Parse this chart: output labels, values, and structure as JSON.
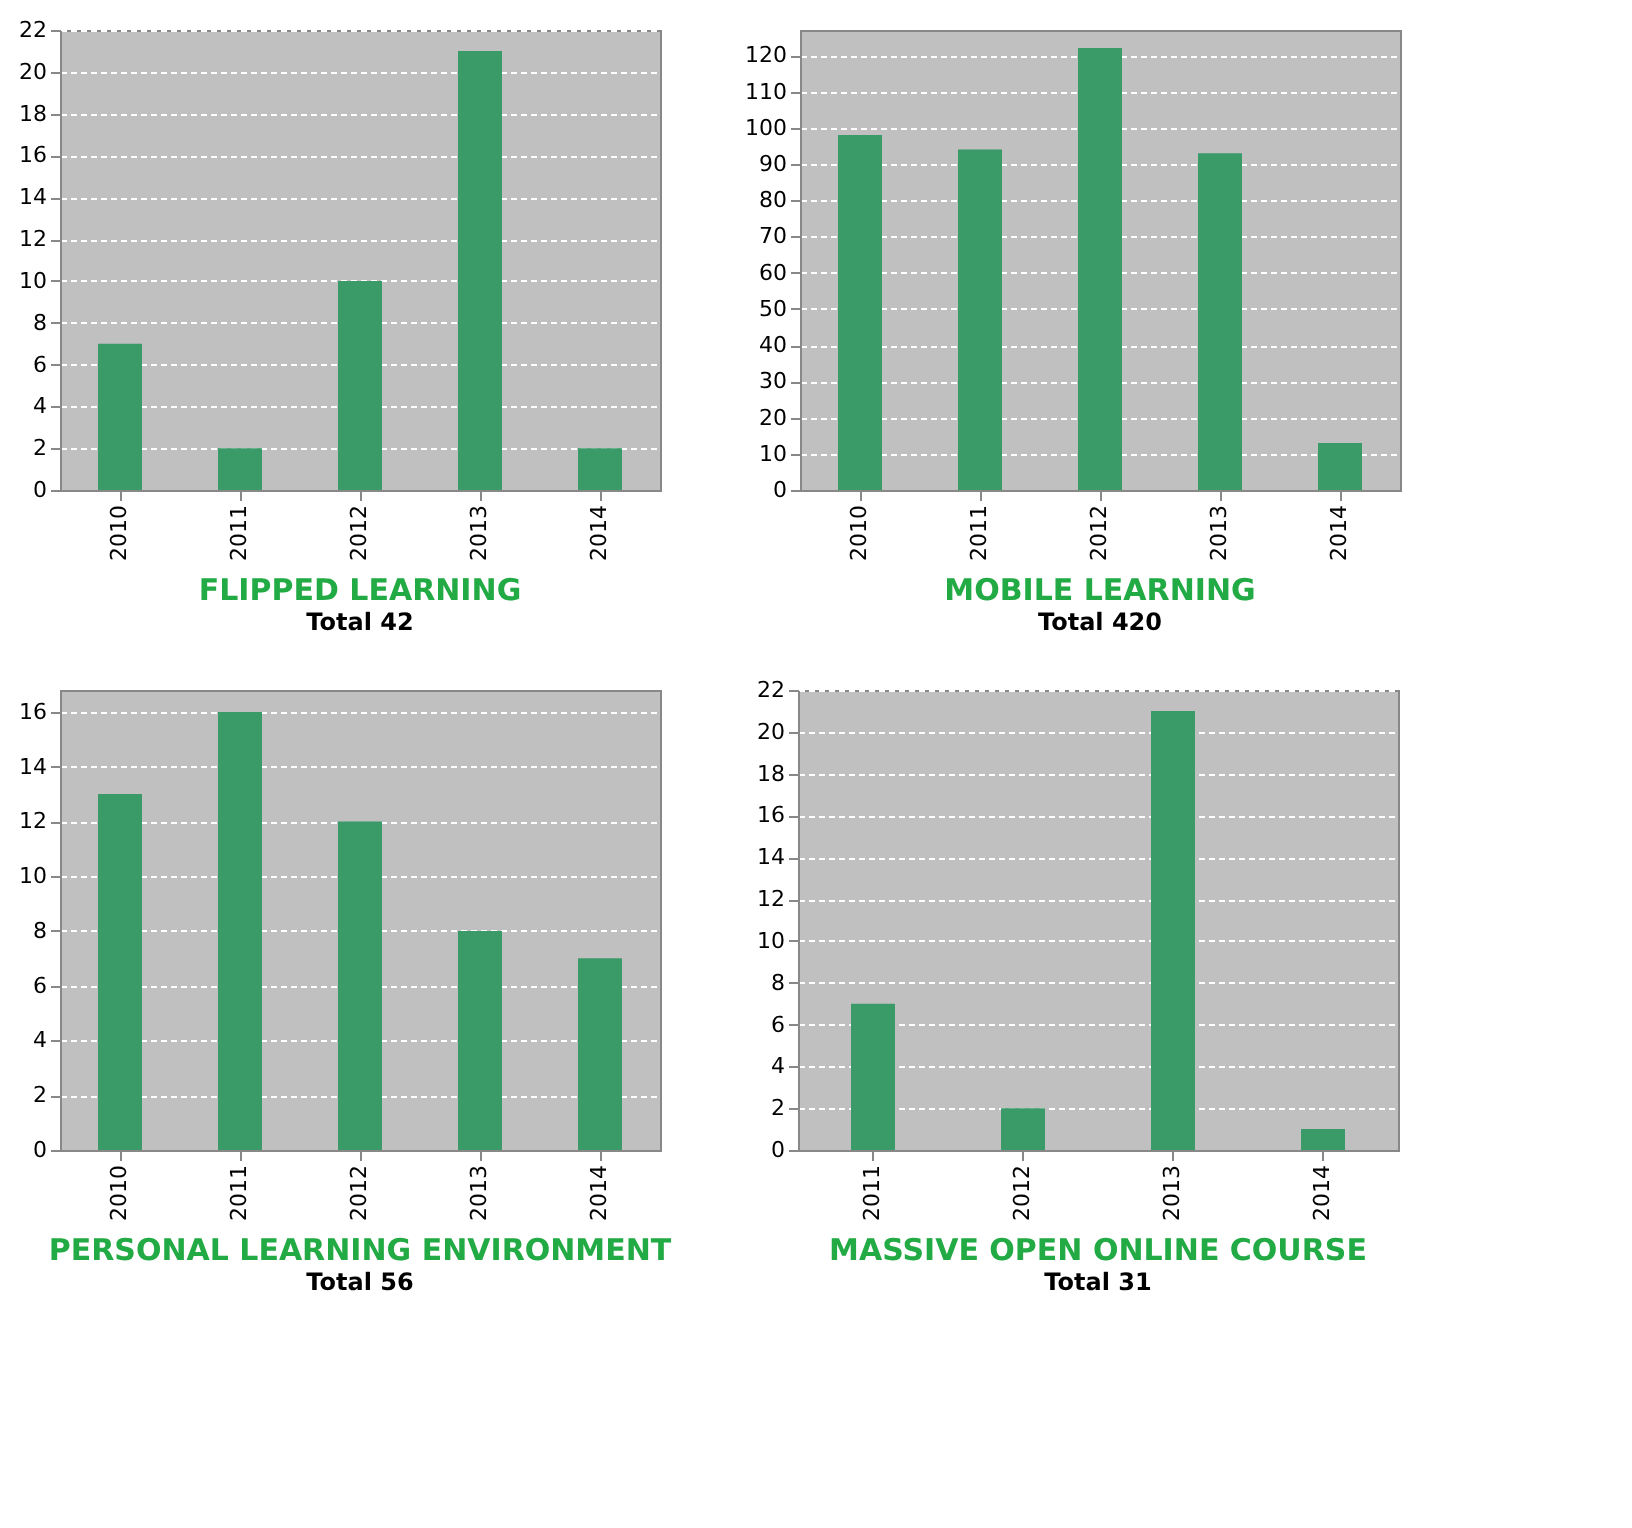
{
  "chart_data": [
    {
      "type": "bar",
      "title": "FLIPPED LEARNING",
      "annotations": [
        "Total 42"
      ],
      "categories": [
        "2010",
        "2011",
        "2012",
        "2013",
        "2014"
      ],
      "values": [
        7,
        2,
        10,
        21,
        2
      ],
      "color": "#3a9a68",
      "ylim": [
        0,
        22
      ],
      "yticks": [
        0,
        2,
        4,
        6,
        8,
        10,
        12,
        14,
        16,
        18,
        20,
        22
      ],
      "grid": "y"
    },
    {
      "type": "bar",
      "title": "MOBILE LEARNING",
      "annotations": [
        "Total 420"
      ],
      "categories": [
        "2010",
        "2011",
        "2012",
        "2013",
        "2014"
      ],
      "values": [
        98,
        94,
        122,
        93,
        13
      ],
      "color": "#3a9a68",
      "ylim": [
        0,
        127
      ],
      "yticks": [
        0,
        10,
        20,
        30,
        40,
        50,
        60,
        70,
        80,
        90,
        100,
        110,
        120
      ],
      "grid": "y"
    },
    {
      "type": "bar",
      "title": "PERSONAL LEARNING ENVIRONMENT",
      "annotations": [
        "Total 56"
      ],
      "categories": [
        "2010",
        "2011",
        "2012",
        "2013",
        "2014"
      ],
      "values": [
        13,
        16,
        12,
        8,
        7
      ],
      "color": "#3a9a68",
      "ylim": [
        0,
        16.8
      ],
      "yticks": [
        0,
        2,
        4,
        6,
        8,
        10,
        12,
        14,
        16
      ],
      "grid": "y"
    },
    {
      "type": "bar",
      "title": "MASSIVE OPEN ONLINE COURSE",
      "annotations": [
        "Total 31"
      ],
      "categories": [
        "2011",
        "2012",
        "2013",
        "2014"
      ],
      "values": [
        7,
        2,
        21,
        1
      ],
      "color": "#3a9a68",
      "ylim": [
        0,
        22
      ],
      "yticks": [
        0,
        2,
        4,
        6,
        8,
        10,
        12,
        14,
        16,
        18,
        20,
        22
      ],
      "grid": "y"
    }
  ]
}
